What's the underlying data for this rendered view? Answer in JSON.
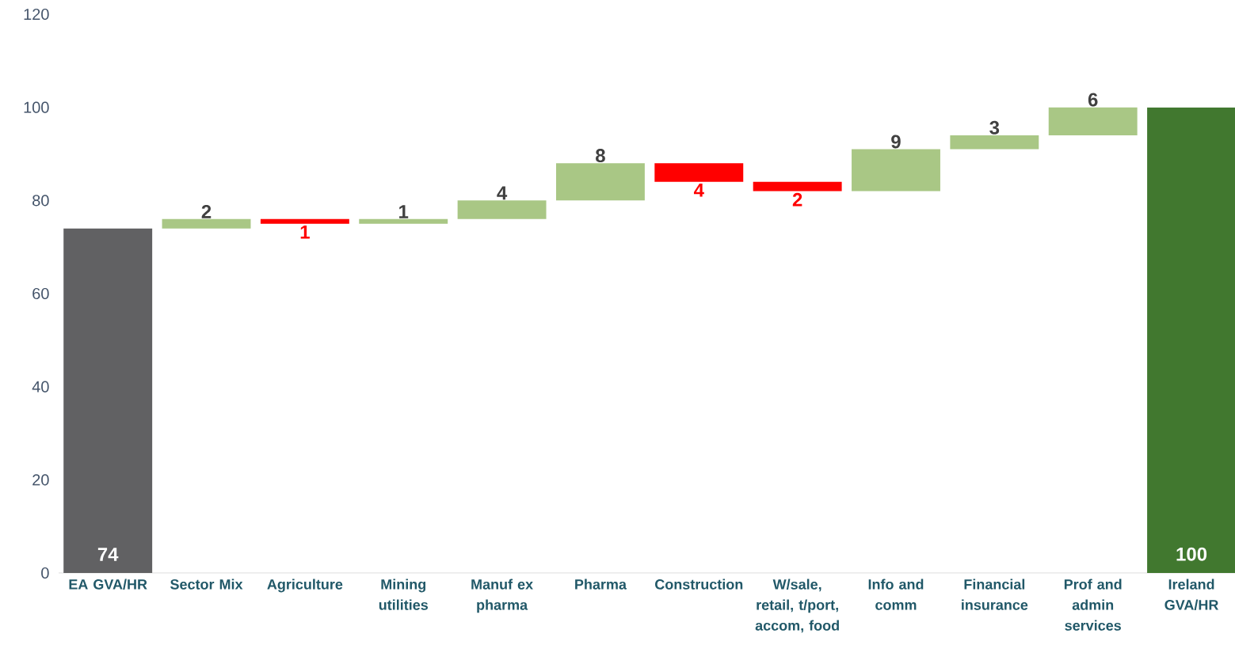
{
  "chart_data": {
    "type": "bar",
    "categories": [
      "EA GVA/HR",
      "Sector Mix",
      "Agriculture",
      "Mining utilities",
      "Manuf ex pharma",
      "Pharma",
      "Construction",
      "W/sale, retail, t/port, accom, food",
      "Info and comm",
      "Financial insurance",
      "Prof and admin services",
      "Ireland GVA/HR"
    ],
    "base": [
      0,
      74,
      76,
      75,
      76,
      80,
      88,
      84,
      82,
      91,
      94,
      0
    ],
    "values": [
      74,
      2,
      -1,
      1,
      4,
      8,
      -4,
      -2,
      9,
      3,
      6,
      100
    ],
    "colors": [
      "#616163",
      "#a9c785",
      "#ff0000",
      "#a9c785",
      "#a9c785",
      "#a9c785",
      "#ff0000",
      "#ff0000",
      "#a9c785",
      "#a9c785",
      "#a9c785",
      "#41782f"
    ],
    "value_labels": [
      "74",
      "2",
      "1",
      "1",
      "4",
      "8",
      "4",
      "2",
      "9",
      "3",
      "6",
      "100"
    ],
    "ylim": [
      0,
      120
    ],
    "yticks": [
      0,
      20,
      40,
      60,
      80,
      100,
      120
    ]
  }
}
